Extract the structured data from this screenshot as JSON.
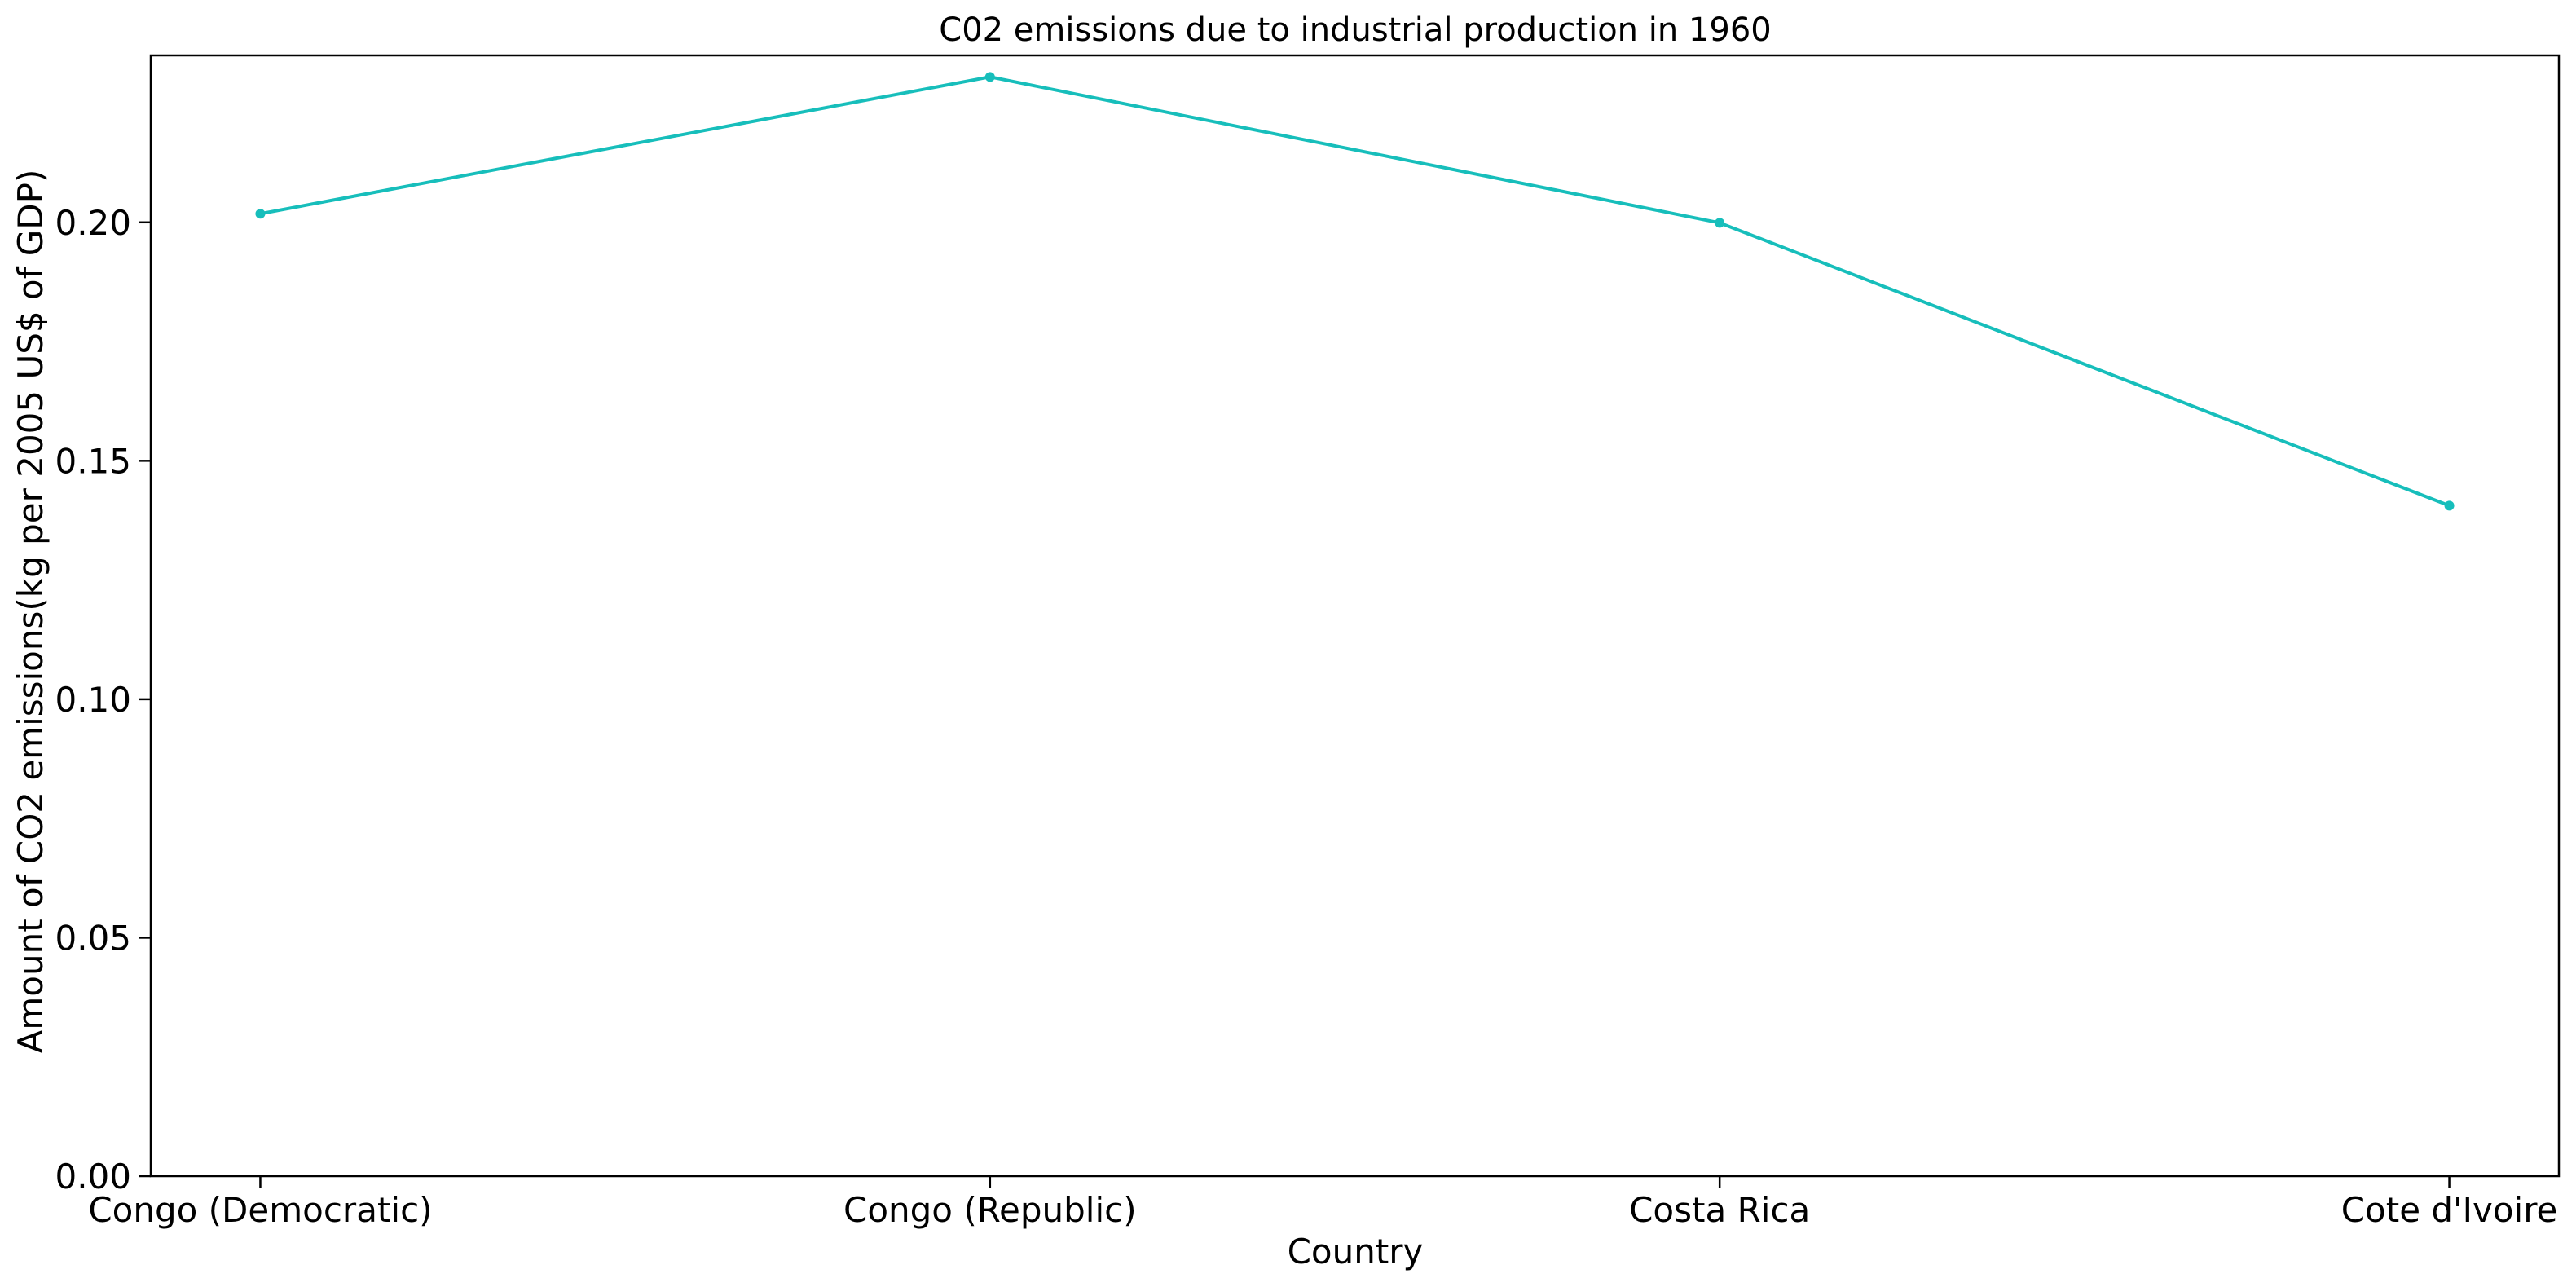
{
  "chart_data": {
    "type": "line",
    "title": "C02 emissions due to industrial production in 1960",
    "xlabel": "Country",
    "ylabel": "Amount of CO2 emissions(kg per 2005 US$ of GDP)",
    "categories": [
      "Congo (Democratic)",
      "Congo (Republic)",
      "Costa Rica",
      "Cote d'Ivoire"
    ],
    "series": [
      {
        "values": [
          0.2018,
          0.2305,
          0.1999,
          0.1406
        ]
      }
    ],
    "ylim": [
      0,
      0.235
    ],
    "yticks": [
      0.0,
      0.05,
      0.1,
      0.15,
      0.2
    ],
    "ytick_labels": [
      "0.00",
      "0.05",
      "0.10",
      "0.15",
      "0.20"
    ],
    "grid": false,
    "line_color": "#17BEBB"
  }
}
